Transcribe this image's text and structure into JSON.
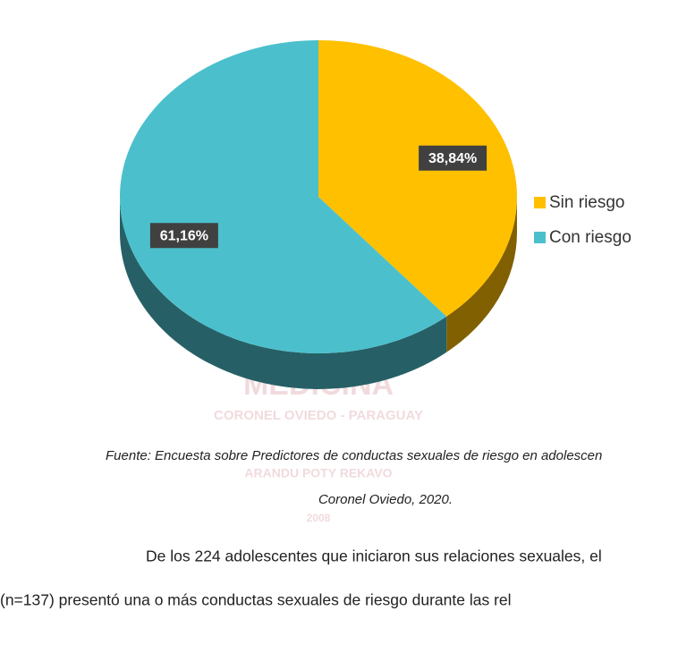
{
  "chart_data": {
    "type": "pie",
    "categories": [
      "Sin riesgo",
      "Con riesgo"
    ],
    "values": [
      38.84,
      61.16
    ],
    "value_labels": [
      "38,84%",
      "61,16%"
    ],
    "colors": [
      "#ffc000",
      "#4bc0cc"
    ],
    "legend": "right"
  },
  "watermark": [
    "MEDICINA",
    "CORONEL OVIEDO - PARAGUAY",
    "ARANDU POTY REKAVO",
    "2008"
  ],
  "caption": [
    "Fuente: Encuesta sobre Predictores de conductas sexuales de riesgo en adolescen",
    "Coronel Oviedo, 2020."
  ],
  "paragraph": [
    "De los 224 adolescentes que iniciaron sus relaciones sexuales, el",
    "(n=137) presentó una o más conductas sexuales de riesgo durante las rel"
  ]
}
